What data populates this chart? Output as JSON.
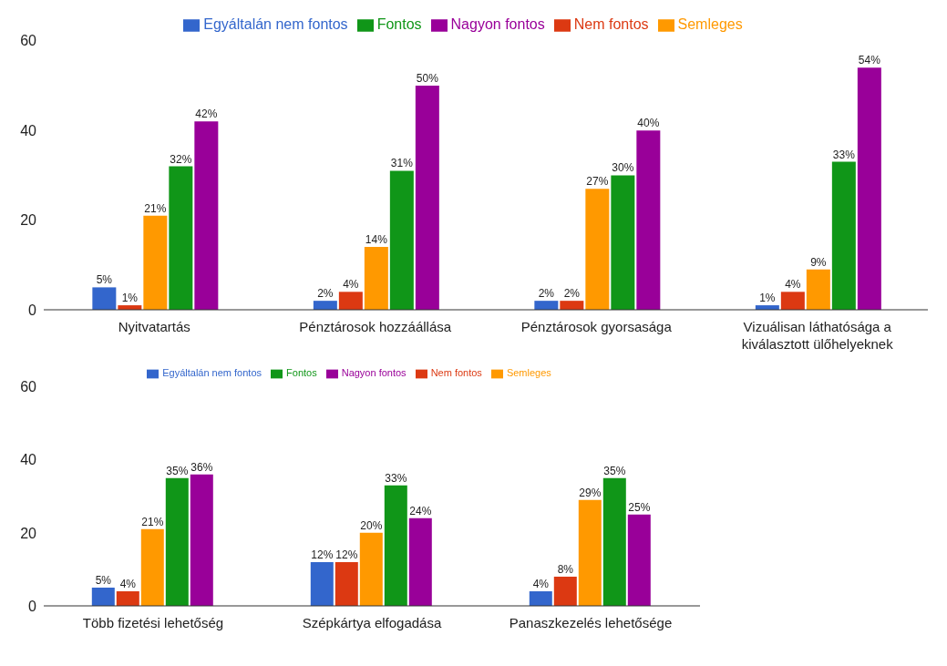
{
  "chart_data": [
    {
      "type": "bar",
      "categories": [
        "Nyitvatartás",
        "Pénztárosok hozzáállása",
        "Pénztárosok gyorsasága",
        "Vizuálisan láthatósága a kiválasztott ülőhelyeknek"
      ],
      "ylim": [
        0,
        60
      ],
      "yticks": [
        0,
        20,
        40,
        60
      ],
      "legend": "top",
      "series": [
        {
          "name": "Egyáltalán nem fontos",
          "color": "#3366cc",
          "values": [
            5,
            2,
            2,
            1
          ],
          "value_labels": [
            "5%",
            "2%",
            "2%",
            "1%"
          ]
        },
        {
          "name": "Nem fontos",
          "color": "#dc3912",
          "values": [
            1,
            4,
            2,
            4
          ],
          "value_labels": [
            "1%",
            "4%",
            "2%",
            "4%"
          ]
        },
        {
          "name": "Semleges",
          "color": "#ff9900",
          "values": [
            21,
            14,
            27,
            9
          ],
          "value_labels": [
            "21%",
            "14%",
            "27%",
            "9%"
          ]
        },
        {
          "name": "Fontos",
          "color": "#109618",
          "values": [
            32,
            31,
            30,
            33
          ],
          "value_labels": [
            "32%",
            "31%",
            "30%",
            "33%"
          ]
        },
        {
          "name": "Nagyon fontos",
          "color": "#990099",
          "values": [
            42,
            50,
            40,
            54
          ],
          "value_labels": [
            "42%",
            "50%",
            "40%",
            "54%"
          ]
        }
      ]
    },
    {
      "type": "bar",
      "categories": [
        "Több fizetési lehetőség",
        "Szépkártya elfogadása",
        "Panaszkezelés lehetősége"
      ],
      "ylim": [
        0,
        60
      ],
      "yticks": [
        0,
        20,
        40,
        60
      ],
      "legend": "top",
      "series": [
        {
          "name": "Egyáltalán nem fontos",
          "color": "#3366cc",
          "values": [
            5,
            12,
            4
          ],
          "value_labels": [
            "5%",
            "12%",
            "4%"
          ]
        },
        {
          "name": "Nem fontos",
          "color": "#dc3912",
          "values": [
            4,
            12,
            8
          ],
          "value_labels": [
            "4%",
            "12%",
            "8%"
          ]
        },
        {
          "name": "Semleges",
          "color": "#ff9900",
          "values": [
            21,
            20,
            29
          ],
          "value_labels": [
            "21%",
            "20%",
            "29%"
          ]
        },
        {
          "name": "Fontos",
          "color": "#109618",
          "values": [
            35,
            33,
            35
          ],
          "value_labels": [
            "35%",
            "33%",
            "35%"
          ]
        },
        {
          "name": "Nagyon fontos",
          "color": "#990099",
          "values": [
            36,
            24,
            25
          ],
          "value_labels": [
            "36%",
            "24%",
            "25%"
          ]
        }
      ]
    }
  ]
}
